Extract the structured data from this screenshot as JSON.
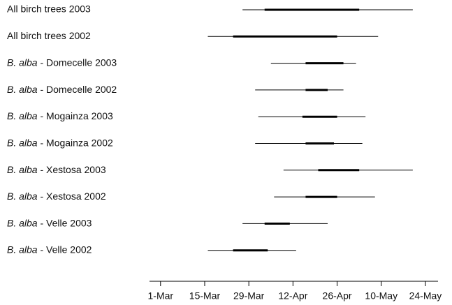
{
  "chart_data": {
    "type": "range",
    "categories": [
      "All birch trees 2003",
      "All birch trees 2002",
      "B. alba - Domecelle 2003",
      "B. alba - Domecelle 2002",
      "B. alba - Mogainza 2003",
      "B. alba - Mogainza 2002",
      "B. alba - Xestosa 2003",
      "B. alba - Xestosa 2002",
      "B. alba - Velle 2003",
      "B. alba - Velle 2002"
    ],
    "start": [
      86,
      75,
      95,
      90,
      91,
      90,
      99,
      96,
      86,
      75
    ],
    "end": [
      140,
      129,
      122,
      118,
      125,
      124,
      140,
      128,
      113,
      103
    ],
    "peak_start": [
      93,
      83,
      106,
      106,
      105,
      106,
      110,
      106,
      93,
      83
    ],
    "peak_end": [
      123,
      116,
      118,
      113,
      116,
      115,
      123,
      116,
      101,
      94
    ],
    "color": "#000000",
    "xlim": [
      56.5,
      148
    ],
    "xticks": [
      {
        "value": 60,
        "label": "1-Mar"
      },
      {
        "value": 74,
        "label": "15-Mar"
      },
      {
        "value": 88,
        "label": "29-Mar"
      },
      {
        "value": 102,
        "label": "12-Apr"
      },
      {
        "value": 116,
        "label": "26-Apr"
      },
      {
        "value": 130,
        "label": "10-May"
      },
      {
        "value": 144,
        "label": "24-May"
      }
    ]
  }
}
